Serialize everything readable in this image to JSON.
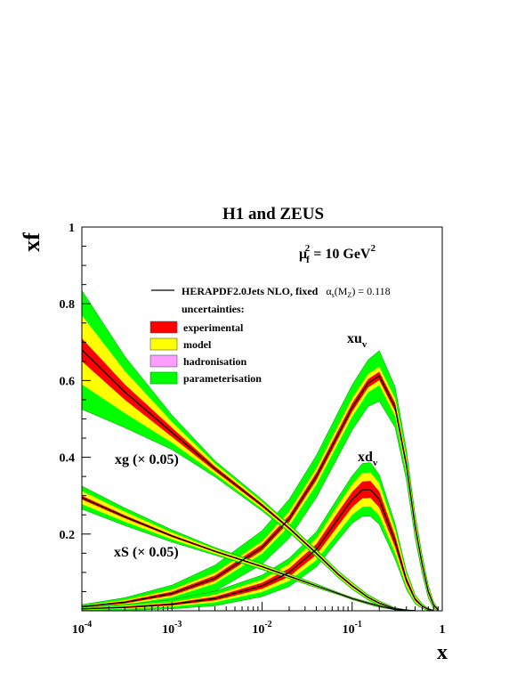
{
  "chart_data": {
    "type": "area",
    "title": "H1 and ZEUS",
    "ylabel": "xf",
    "xlabel": "x",
    "x_scale": "log",
    "xlim": [
      0.0001,
      1
    ],
    "ylim": [
      0,
      1
    ],
    "x_ticks": [
      {
        "value": 0.0001,
        "base": "10",
        "exp": "-4"
      },
      {
        "value": 0.001,
        "base": "10",
        "exp": "-3"
      },
      {
        "value": 0.01,
        "base": "10",
        "exp": "-2"
      },
      {
        "value": 0.1,
        "base": "10",
        "exp": "-1"
      },
      {
        "value": 1,
        "base": "1",
        "exp": ""
      }
    ],
    "y_ticks": [
      {
        "value": 0.2,
        "label": "0.2"
      },
      {
        "value": 0.4,
        "label": "0.4"
      },
      {
        "value": 0.6,
        "label": "0.6"
      },
      {
        "value": 0.8,
        "label": "0.8"
      },
      {
        "value": 1.0,
        "label": "1"
      }
    ],
    "scale_label": {
      "mu": "μ",
      "sub": "f",
      "sup": "2",
      "eq": " = 10 GeV",
      "sup2": "2"
    },
    "legend": {
      "line_label": "HERAPDF2.0Jets NLO, fixed",
      "alpha": {
        "sym": "α",
        "sub": "s",
        "paren": "(M",
        "zsub": "Z",
        "rest": ") = 0.118"
      },
      "heading": "uncertainties:",
      "entries": [
        {
          "label": "experimental",
          "color": "#ff0000"
        },
        {
          "label": "model",
          "color": "#ffff00"
        },
        {
          "label": "hadronisation",
          "color": "#ff9cff"
        },
        {
          "label": "parameterisation",
          "color": "#00ff00"
        }
      ]
    },
    "colors": {
      "central": "#000000",
      "experimental": "#ff0000",
      "model": "#ffff00",
      "hadronisation": "#ff9cff",
      "parameterisation": "#00ff00"
    },
    "series": [
      {
        "name": "xu_v",
        "label": {
          "base": "xu",
          "sub": "v"
        },
        "x": [
          0.0001,
          0.0003,
          0.001,
          0.003,
          0.01,
          0.02,
          0.04,
          0.07,
          0.1,
          0.15,
          0.2,
          0.3,
          0.4,
          0.5,
          0.6,
          0.7,
          0.8,
          0.9
        ],
        "central": [
          0.011,
          0.022,
          0.045,
          0.085,
          0.165,
          0.24,
          0.35,
          0.46,
          0.53,
          0.593,
          0.612,
          0.53,
          0.38,
          0.22,
          0.12,
          0.05,
          0.015,
          0.002
        ],
        "exp_err": [
          0.001,
          0.003,
          0.005,
          0.007,
          0.008,
          0.009,
          0.01,
          0.011,
          0.011,
          0.011,
          0.011,
          0.011,
          0.01,
          0.009,
          0.007,
          0.005,
          0.003,
          0.001
        ],
        "model_err": [
          0.001,
          0.003,
          0.005,
          0.007,
          0.008,
          0.01,
          0.011,
          0.012,
          0.013,
          0.013,
          0.013,
          0.012,
          0.011,
          0.01,
          0.008,
          0.006,
          0.003,
          0.001
        ],
        "param_err": [
          0.003,
          0.006,
          0.012,
          0.02,
          0.028,
          0.032,
          0.034,
          0.035,
          0.035,
          0.037,
          0.042,
          0.03,
          0.018,
          0.012,
          0.009,
          0.006,
          0.003,
          0.001
        ]
      },
      {
        "name": "xd_v",
        "label": {
          "base": "xd",
          "sub": "v"
        },
        "x": [
          0.0001,
          0.0003,
          0.001,
          0.003,
          0.01,
          0.02,
          0.04,
          0.07,
          0.1,
          0.13,
          0.16,
          0.2,
          0.3,
          0.4,
          0.5,
          0.6,
          0.7,
          0.8
        ],
        "central": [
          0.005,
          0.009,
          0.017,
          0.032,
          0.065,
          0.1,
          0.16,
          0.24,
          0.29,
          0.315,
          0.316,
          0.29,
          0.18,
          0.08,
          0.03,
          0.012,
          0.004,
          0.001
        ],
        "exp_err": [
          0.001,
          0.002,
          0.003,
          0.005,
          0.008,
          0.011,
          0.014,
          0.018,
          0.02,
          0.022,
          0.022,
          0.021,
          0.015,
          0.008,
          0.004,
          0.002,
          0.001,
          0.0
        ],
        "model_err": [
          0.001,
          0.002,
          0.003,
          0.005,
          0.008,
          0.011,
          0.014,
          0.018,
          0.02,
          0.022,
          0.022,
          0.021,
          0.015,
          0.008,
          0.004,
          0.002,
          0.001,
          0.0
        ],
        "param_err": [
          0.002,
          0.004,
          0.006,
          0.009,
          0.012,
          0.015,
          0.018,
          0.02,
          0.022,
          0.025,
          0.026,
          0.023,
          0.016,
          0.008,
          0.004,
          0.002,
          0.001,
          0.0
        ]
      },
      {
        "name": "xg (× 0.05)",
        "label": {
          "base": "xg (× 0.05)",
          "sub": ""
        },
        "x": [
          0.0001,
          0.0003,
          0.001,
          0.003,
          0.01,
          0.02,
          0.04,
          0.07,
          0.1,
          0.15,
          0.2,
          0.3,
          0.4,
          0.5
        ],
        "central": [
          0.68,
          0.57,
          0.465,
          0.37,
          0.275,
          0.215,
          0.15,
          0.095,
          0.065,
          0.035,
          0.02,
          0.005,
          0.0015,
          0.0003
        ],
        "exp_err": [
          0.03,
          0.02,
          0.012,
          0.006,
          0.004,
          0.003,
          0.003,
          0.003,
          0.003,
          0.002,
          0.002,
          0.001,
          0.0005,
          0.0002
        ],
        "model_err": [
          0.06,
          0.035,
          0.015,
          0.007,
          0.005,
          0.004,
          0.003,
          0.003,
          0.003,
          0.002,
          0.002,
          0.001,
          0.0005,
          0.0002
        ],
        "param_err": [
          0.065,
          0.038,
          0.018,
          0.008,
          0.006,
          0.004,
          0.004,
          0.003,
          0.003,
          0.003,
          0.002,
          0.001,
          0.0005,
          0.0002
        ]
      },
      {
        "name": "xS (× 0.05)",
        "label": {
          "base": "xS (× 0.05)",
          "sub": ""
        },
        "x": [
          0.0001,
          0.0003,
          0.001,
          0.003,
          0.01,
          0.02,
          0.04,
          0.07,
          0.1,
          0.15,
          0.2,
          0.3,
          0.4,
          0.5
        ],
        "central": [
          0.295,
          0.245,
          0.195,
          0.155,
          0.115,
          0.09,
          0.065,
          0.045,
          0.032,
          0.02,
          0.012,
          0.004,
          0.0012,
          0.0003
        ],
        "exp_err": [
          0.005,
          0.004,
          0.003,
          0.002,
          0.002,
          0.002,
          0.001,
          0.001,
          0.001,
          0.001,
          0.001,
          0.0005,
          0.0002,
          0.0001
        ],
        "model_err": [
          0.012,
          0.009,
          0.006,
          0.004,
          0.003,
          0.002,
          0.002,
          0.001,
          0.001,
          0.001,
          0.001,
          0.0005,
          0.0002,
          0.0001
        ],
        "param_err": [
          0.013,
          0.01,
          0.007,
          0.004,
          0.003,
          0.002,
          0.002,
          0.001,
          0.001,
          0.001,
          0.001,
          0.0005,
          0.0002,
          0.0001
        ]
      }
    ]
  }
}
